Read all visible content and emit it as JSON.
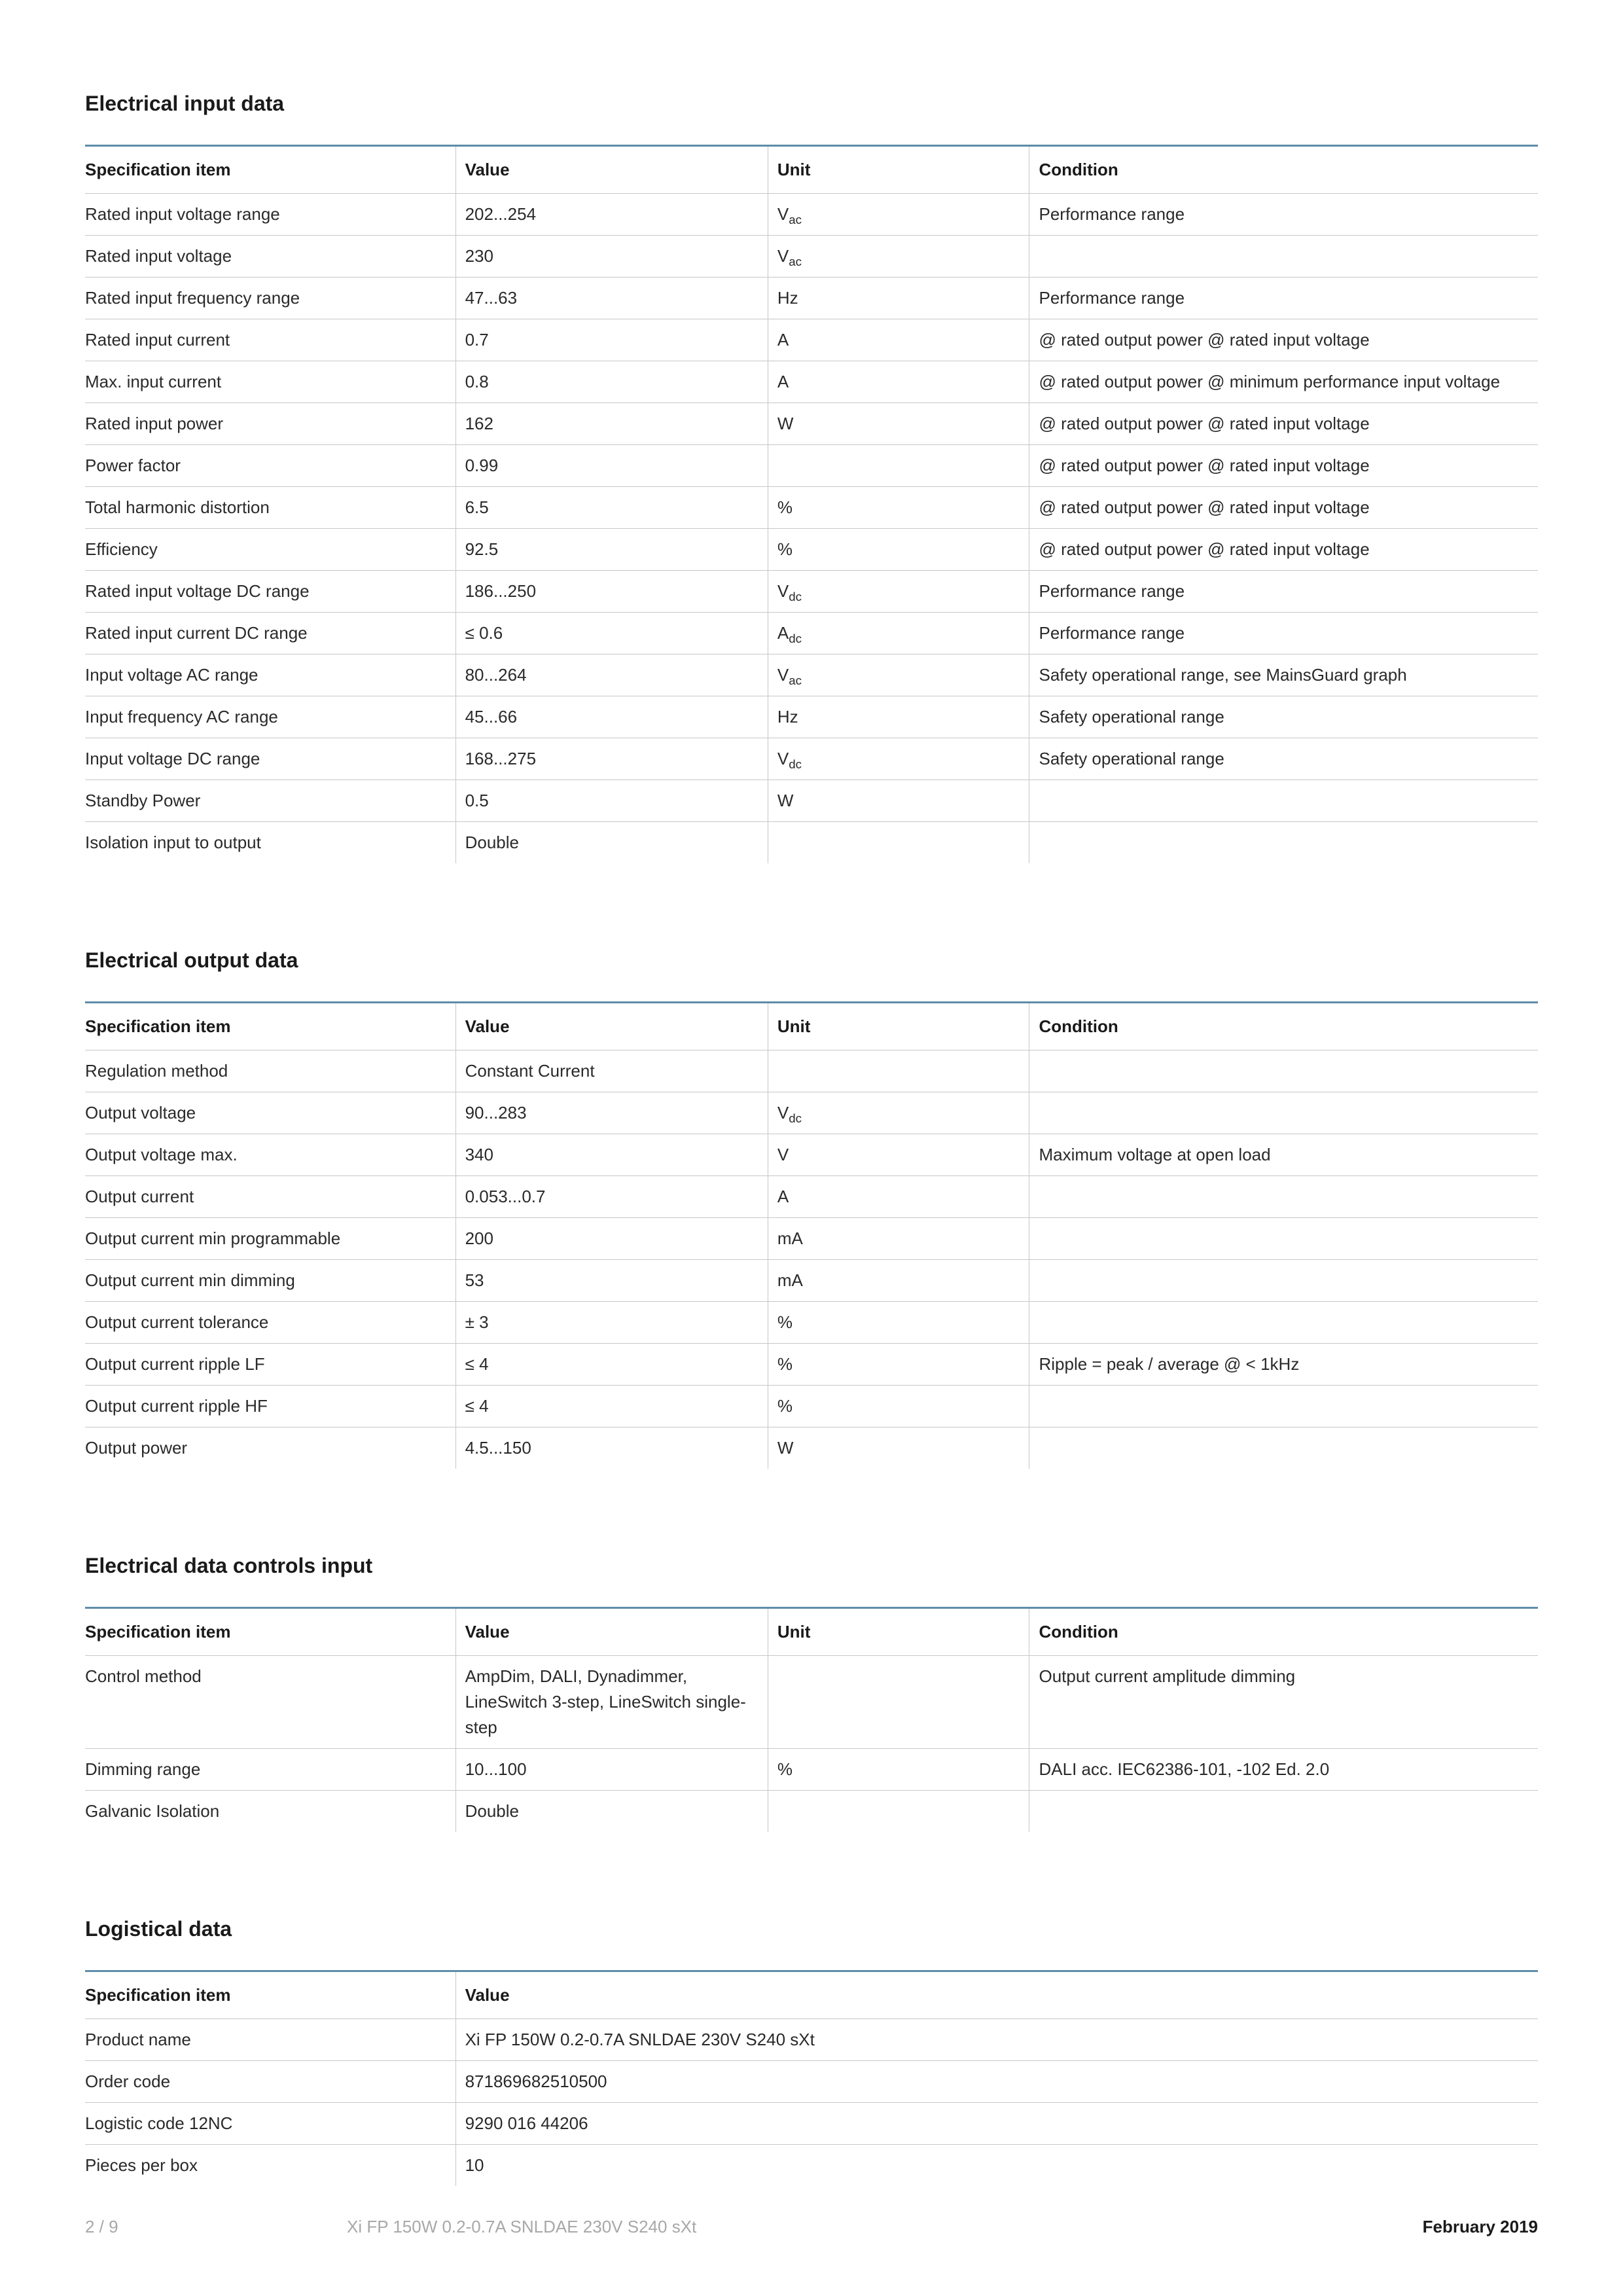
{
  "colors": {
    "headerRule": "#5e8ca8",
    "rowBorder": "#c7c7c7",
    "text": "#2a2a2a",
    "heading": "#1a1a1a",
    "footerGrey": "#a8a8a8",
    "background": "#ffffff"
  },
  "typography": {
    "sectionTitle_pt": 32,
    "cell_pt": 26,
    "footer_pt": 26
  },
  "columns4": [
    "Specification item",
    "Value",
    "Unit",
    "Condition"
  ],
  "columns2": [
    "Specification item",
    "Value"
  ],
  "sections": {
    "input": {
      "title": "Electrical input data",
      "rows": [
        [
          "Rated input voltage range",
          "202...254",
          "V<sub>ac</sub>",
          "Performance range"
        ],
        [
          "Rated input voltage",
          "230",
          "V<sub>ac</sub>",
          ""
        ],
        [
          "Rated input frequency range",
          "47...63",
          "Hz",
          "Performance range"
        ],
        [
          "Rated input current",
          "0.7",
          "A",
          "@ rated output power @ rated input voltage"
        ],
        [
          "Max. input current",
          "0.8",
          "A",
          "@ rated output power @ minimum performance input voltage"
        ],
        [
          "Rated input power",
          "162",
          "W",
          "@ rated output power @ rated input voltage"
        ],
        [
          "Power factor",
          "0.99",
          "",
          "@ rated output power @ rated input voltage"
        ],
        [
          "Total harmonic distortion",
          "6.5",
          "%",
          "@ rated output power @ rated input voltage"
        ],
        [
          "Efficiency",
          "92.5",
          "%",
          "@ rated output power @ rated input voltage"
        ],
        [
          "Rated input voltage DC range",
          "186...250",
          "V<sub>dc</sub>",
          "Performance range"
        ],
        [
          "Rated input current DC range",
          "≤ 0.6",
          "A<sub>dc</sub>",
          "Performance range"
        ],
        [
          "Input voltage AC range",
          "80...264",
          "V<sub>ac</sub>",
          "Safety operational range, see MainsGuard graph"
        ],
        [
          "Input frequency AC range",
          "45...66",
          "Hz",
          "Safety operational range"
        ],
        [
          "Input voltage DC range",
          "168...275",
          "V<sub>dc</sub>",
          "Safety operational range"
        ],
        [
          "Standby Power",
          "0.5",
          "W",
          ""
        ],
        [
          "Isolation input to output",
          "Double",
          "",
          ""
        ]
      ]
    },
    "output": {
      "title": "Electrical output data",
      "rows": [
        [
          "Regulation method",
          "Constant Current",
          "",
          ""
        ],
        [
          "Output voltage",
          "90...283",
          "V<sub>dc</sub>",
          ""
        ],
        [
          "Output voltage max.",
          "340",
          "V",
          "Maximum voltage at open load"
        ],
        [
          "Output current",
          "0.053...0.7",
          "A",
          ""
        ],
        [
          "Output current min programmable",
          "200",
          "mA",
          ""
        ],
        [
          "Output current min dimming",
          "53",
          "mA",
          ""
        ],
        [
          "Output current tolerance",
          "± 3",
          "%",
          ""
        ],
        [
          "Output current ripple LF",
          "≤ 4",
          "%",
          "Ripple = peak / average @ < 1kHz"
        ],
        [
          "Output current ripple HF",
          "≤ 4",
          "%",
          ""
        ],
        [
          "Output power",
          "4.5...150",
          "W",
          ""
        ]
      ]
    },
    "controls": {
      "title": "Electrical data controls input",
      "rows": [
        [
          "Control method",
          "AmpDim, DALI, Dynadimmer, LineSwitch 3-step, LineSwitch single-step",
          "",
          "Output current amplitude dimming"
        ],
        [
          "Dimming range",
          "10...100",
          "%",
          "DALI acc. IEC62386-101, -102 Ed. 2.0"
        ],
        [
          "Galvanic Isolation",
          "Double",
          "",
          ""
        ]
      ]
    },
    "logistical": {
      "title": "Logistical data",
      "rows": [
        [
          "Product name",
          "Xi FP 150W 0.2-0.7A SNLDAE 230V S240 sXt"
        ],
        [
          "Order code",
          "871869682510500"
        ],
        [
          "Logistic code 12NC",
          "9290 016 44206"
        ],
        [
          "Pieces per box",
          "10"
        ]
      ]
    }
  },
  "footer": {
    "page": "2 / 9",
    "product": "Xi FP 150W 0.2-0.7A SNLDAE 230V S240 sXt",
    "date": "February 2019"
  }
}
